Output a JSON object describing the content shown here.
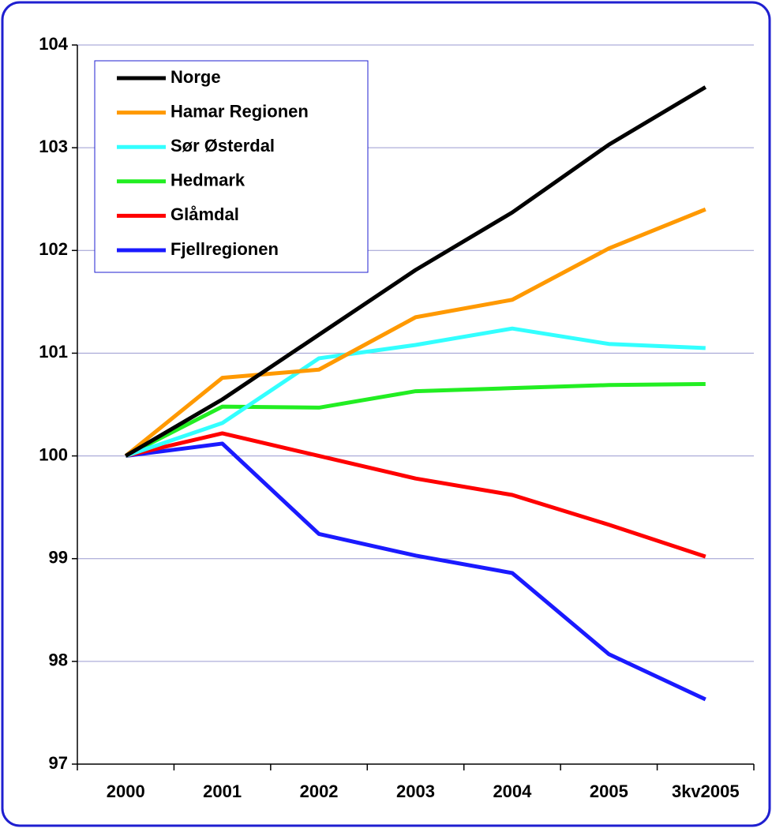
{
  "chart_data": {
    "type": "line",
    "categories": [
      "2000",
      "2001",
      "2002",
      "2003",
      "2004",
      "2005",
      "3kv2005"
    ],
    "series": [
      {
        "name": "Norge",
        "color": "#000000",
        "values": [
          100,
          100.55,
          101.18,
          101.81,
          102.37,
          103.03,
          103.59
        ]
      },
      {
        "name": "Hamar Regionen",
        "color": "#ff9900",
        "values": [
          100,
          100.76,
          100.84,
          101.35,
          101.52,
          102.02,
          102.4
        ]
      },
      {
        "name": "Sør Østerdal",
        "color": "#33ffff",
        "values": [
          100,
          100.32,
          100.95,
          101.08,
          101.24,
          101.09,
          101.05
        ]
      },
      {
        "name": "Hedmark",
        "color": "#22ee22",
        "values": [
          100,
          100.48,
          100.47,
          100.63,
          100.66,
          100.69,
          100.7
        ]
      },
      {
        "name": "Glåmdal",
        "color": "#ff0000",
        "values": [
          100,
          100.22,
          100.0,
          99.78,
          99.62,
          99.33,
          99.02
        ]
      },
      {
        "name": "Fjellregionen",
        "color": "#1a1aff",
        "values": [
          100,
          100.12,
          99.24,
          99.03,
          98.86,
          98.07,
          97.63
        ]
      }
    ],
    "ylim": [
      97,
      104
    ],
    "yticks": [
      97,
      98,
      99,
      100,
      101,
      102,
      103,
      104
    ],
    "grid": true,
    "legend": "top-left"
  }
}
